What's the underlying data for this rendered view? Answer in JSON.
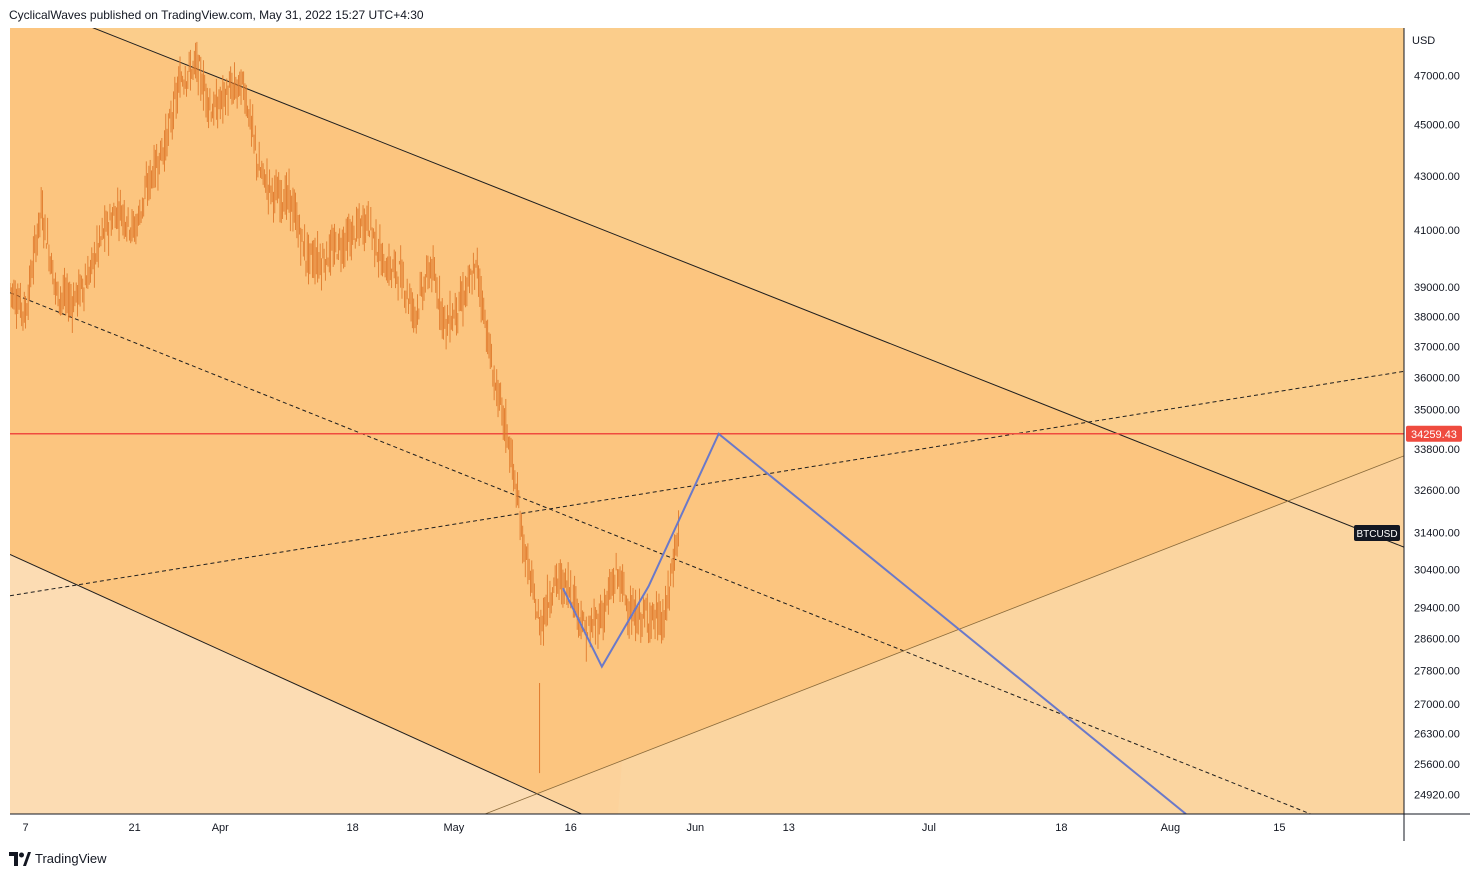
{
  "header": {
    "attribution": "CyclicalWaves published on TradingView.com, May 31, 2022 15:27 UTC+4:30"
  },
  "footer": {
    "brand": "TradingView",
    "logo_icon": "tradingview-logo-icon"
  },
  "colors": {
    "chart_bg_light": "#fbcd8b",
    "channel_fill": "#fcc37c",
    "outside_fill": "#fcdcb3",
    "candle": "#e07a2c",
    "red_line": "#ef4b3f",
    "blue_path": "#6a79c9",
    "trendline": "#1f1f1f"
  },
  "chart_data": {
    "type": "candlestick",
    "symbol": "BTCUSD",
    "currency": "USD",
    "y_scale": "log",
    "ylim": [
      24500,
      49000
    ],
    "y_ticks": [
      "47000.00",
      "45000.00",
      "43000.00",
      "41000.00",
      "39000.00",
      "38000.00",
      "37000.00",
      "36000.00",
      "35000.00",
      "33800.00",
      "32600.00",
      "31400.00",
      "30400.00",
      "29400.00",
      "28600.00",
      "27800.00",
      "27000.00",
      "26300.00",
      "25600.00",
      "24920.00"
    ],
    "x_ticks": [
      "7",
      "21",
      "Apr",
      "18",
      "May",
      "16",
      "Jun",
      "13",
      "Jul",
      "18",
      "Aug",
      "15"
    ],
    "x_range": [
      "2022-03-05",
      "2022-08-31"
    ],
    "horizontal_line": {
      "price": 34259.43,
      "label": "34259.43"
    },
    "symbol_label": "BTCUSD",
    "series_daily_close": [
      [
        "2022-03-05",
        39000
      ],
      [
        "2022-03-07",
        38100
      ],
      [
        "2022-03-09",
        41800
      ],
      [
        "2022-03-11",
        38800
      ],
      [
        "2022-03-13",
        38500
      ],
      [
        "2022-03-15",
        39300
      ],
      [
        "2022-03-17",
        40900
      ],
      [
        "2022-03-19",
        41800
      ],
      [
        "2022-03-21",
        41000
      ],
      [
        "2022-03-23",
        42900
      ],
      [
        "2022-03-25",
        44300
      ],
      [
        "2022-03-27",
        46900
      ],
      [
        "2022-03-29",
        47400
      ],
      [
        "2022-03-31",
        45500
      ],
      [
        "2022-04-02",
        46300
      ],
      [
        "2022-04-04",
        46600
      ],
      [
        "2022-04-06",
        43200
      ],
      [
        "2022-04-08",
        42300
      ],
      [
        "2022-04-10",
        42100
      ],
      [
        "2022-04-12",
        40100
      ],
      [
        "2022-04-14",
        39900
      ],
      [
        "2022-04-16",
        40400
      ],
      [
        "2022-04-18",
        40800
      ],
      [
        "2022-04-20",
        41400
      ],
      [
        "2022-04-22",
        39700
      ],
      [
        "2022-04-24",
        39500
      ],
      [
        "2022-04-26",
        38100
      ],
      [
        "2022-04-28",
        39700
      ],
      [
        "2022-04-30",
        37700
      ],
      [
        "2022-05-02",
        38500
      ],
      [
        "2022-05-04",
        39700
      ],
      [
        "2022-05-06",
        36100
      ],
      [
        "2022-05-08",
        34100
      ],
      [
        "2022-05-10",
        31000
      ],
      [
        "2022-05-12",
        28900
      ],
      [
        "2022-05-14",
        30100
      ],
      [
        "2022-05-16",
        29900
      ],
      [
        "2022-05-18",
        28700
      ],
      [
        "2022-05-20",
        29200
      ],
      [
        "2022-05-22",
        30300
      ],
      [
        "2022-05-24",
        29100
      ],
      [
        "2022-05-26",
        29200
      ],
      [
        "2022-05-28",
        29000
      ],
      [
        "2022-05-30",
        31700
      ]
    ],
    "wave_path": [
      [
        "2022-05-15",
        29900
      ],
      [
        "2022-05-20",
        27900
      ],
      [
        "2022-05-26",
        29950
      ],
      [
        "2022-06-04",
        34259.43
      ],
      [
        "2022-08-03",
        24500
      ]
    ],
    "trendlines": [
      {
        "style": "solid",
        "from": [
          "2022-03-12",
          49500
        ],
        "to": [
          "2022-08-31",
          31000
        ]
      },
      {
        "style": "solid",
        "from": [
          "2022-03-05",
          30800
        ],
        "to": [
          "2022-05-24",
          24000
        ]
      },
      {
        "style": "dashed",
        "from": [
          "2022-03-05",
          38800
        ],
        "to": [
          "2022-08-19",
          24500
        ]
      },
      {
        "style": "dashed",
        "from": [
          "2022-03-05",
          29700
        ],
        "to": [
          "2022-08-31",
          36200
        ]
      },
      {
        "style": "solid-thin",
        "from": [
          "2022-05-05",
          24500
        ],
        "to": [
          "2022-08-31",
          33600
        ]
      }
    ]
  }
}
